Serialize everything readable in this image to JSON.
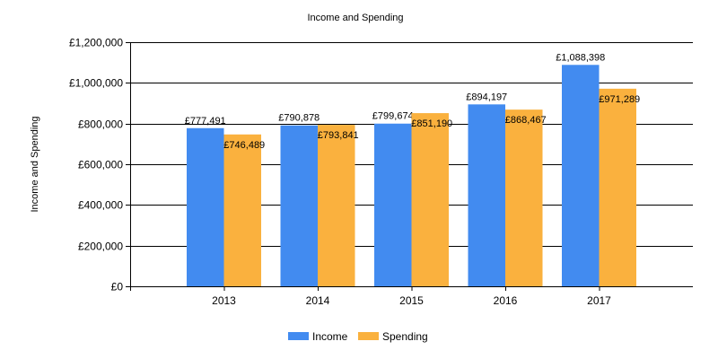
{
  "chart_data": {
    "type": "bar",
    "title": "Income and Spending",
    "xlabel": "",
    "ylabel": "Income and Spending",
    "categories": [
      "2013",
      "2014",
      "2015",
      "2016",
      "2017"
    ],
    "series": [
      {
        "name": "Income",
        "color": "#428BF0",
        "values": [
          777491,
          790878,
          799674,
          894197,
          1088398
        ],
        "labels": [
          "£777,491",
          "£790,878",
          "£799,674",
          "£894,197",
          "£1,088,398"
        ]
      },
      {
        "name": "Spending",
        "color": "#FAB13E",
        "values": [
          746489,
          793841,
          851190,
          868467,
          971289
        ],
        "labels": [
          "£746,489",
          "£793,841",
          "£851,190",
          "£868,467",
          "£971,289"
        ]
      }
    ],
    "ylim": [
      0,
      1200000
    ],
    "yticks": [
      0,
      200000,
      400000,
      600000,
      800000,
      1000000,
      1200000
    ],
    "ytick_labels": [
      "£0",
      "£200,000",
      "£400,000",
      "£600,000",
      "£800,000",
      "£1,000,000",
      "£1,200,000"
    ],
    "grid": true,
    "legend_position": "bottom"
  }
}
